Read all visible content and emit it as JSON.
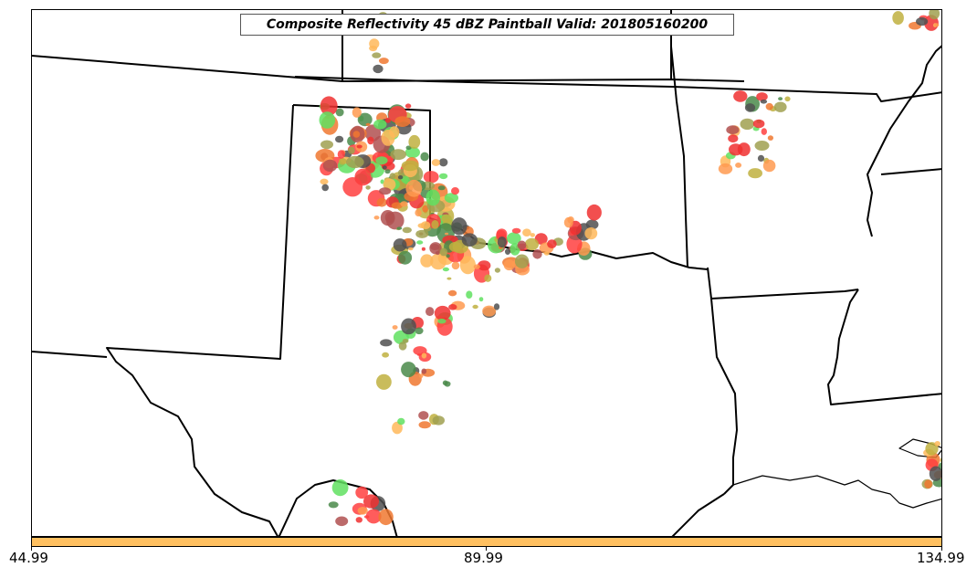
{
  "title": "Composite Reflectivity 45 dBZ Paintball Valid: 201805160200",
  "colorbar": {
    "color": "#ffc060",
    "tick_labels": [
      "44.99",
      "89.99",
      "134.99"
    ]
  },
  "member_colors": [
    "#f03030",
    "#f07830",
    "#60e060",
    "#a0a050",
    "#505050",
    "#b05050",
    "#4a8a4a",
    "#ff9a50",
    "#ffb85a",
    "#ff4040",
    "#c0b040"
  ],
  "map_features": [
    "state-boundaries",
    "coastline",
    "reflectivity-paintballs"
  ]
}
